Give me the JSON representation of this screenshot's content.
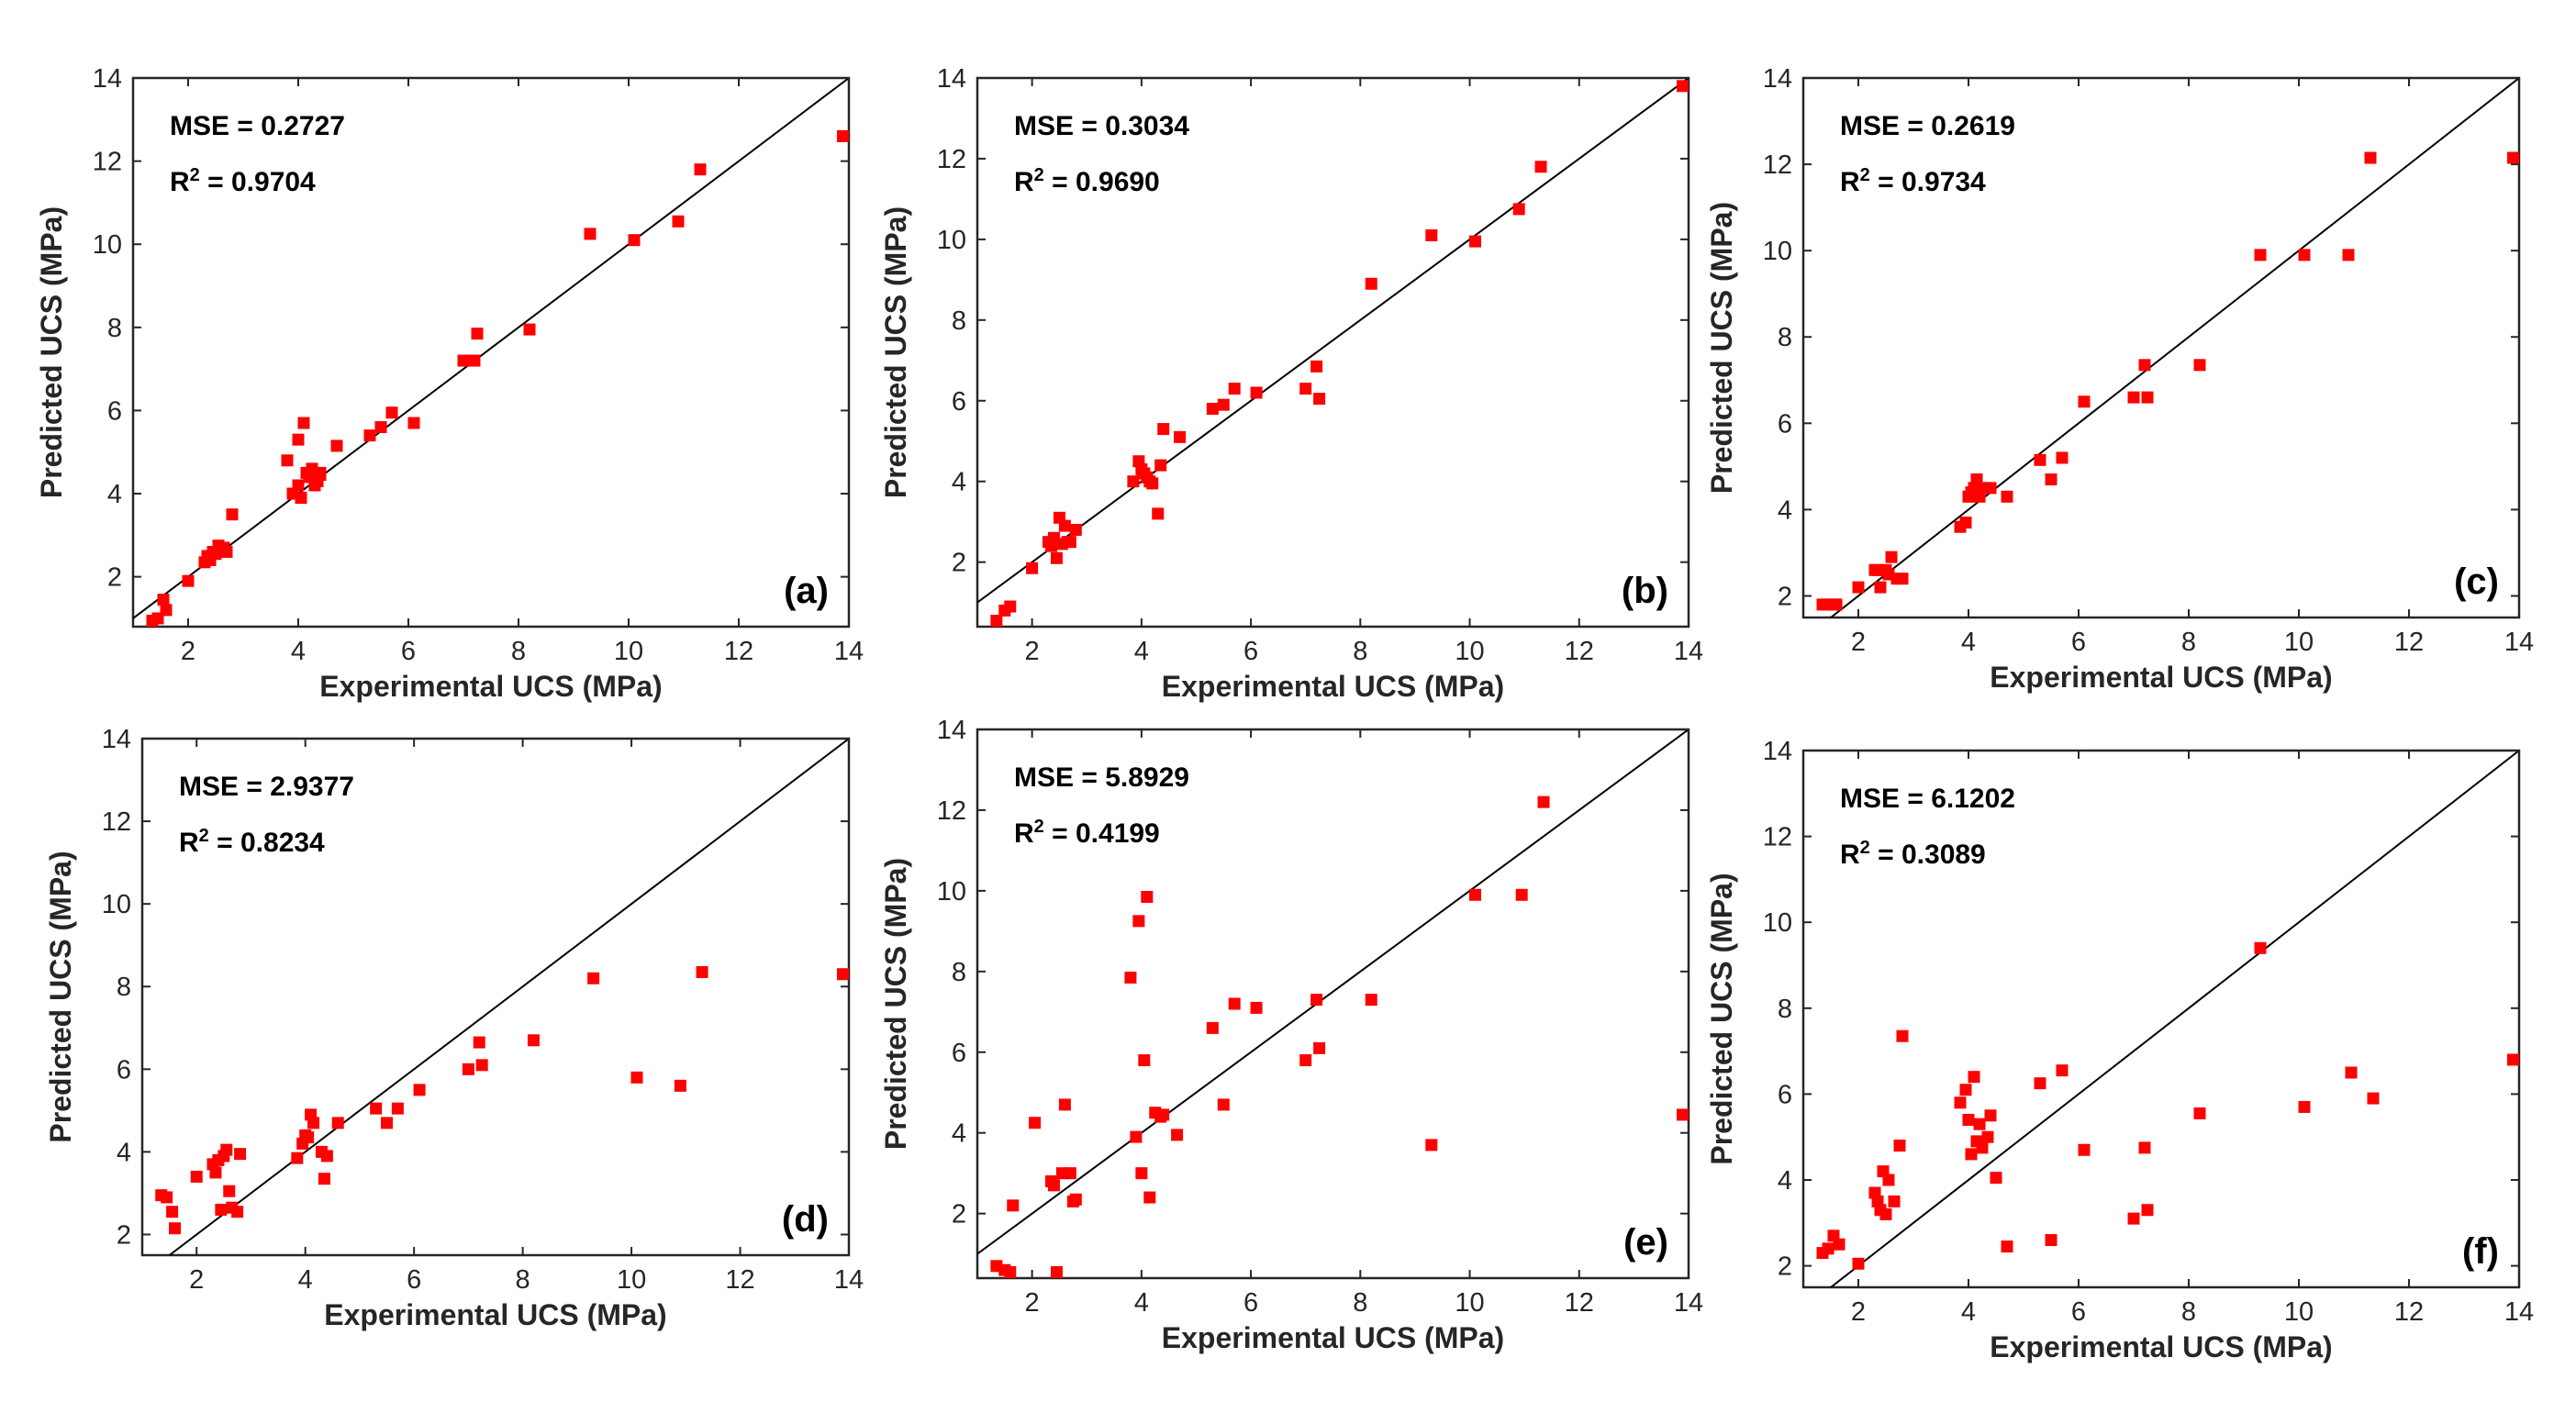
{
  "figure": {
    "marker_color": "#ff0000",
    "line_color": "#000000"
  },
  "chart_data": [
    {
      "type": "scatter",
      "panel": "(a)",
      "xlabel": "Experimental UCS (MPa)",
      "ylabel": "Predicted UCS (MPa)",
      "mse": "MSE = 0.2727",
      "r2": "0.9704",
      "xlim": [
        1,
        14
      ],
      "ylim": [
        0.8,
        14
      ],
      "xticks": [
        "2",
        "4",
        "6",
        "8",
        "10",
        "12",
        "14"
      ],
      "yticks": [
        "2",
        "4",
        "6",
        "8",
        "10",
        "12",
        "14"
      ],
      "reference_line": "y = x",
      "x": [
        1.35,
        1.45,
        1.55,
        1.6,
        2.0,
        2.3,
        2.35,
        2.4,
        2.45,
        2.5,
        2.55,
        2.6,
        2.65,
        2.7,
        2.8,
        3.8,
        3.9,
        4.0,
        4.0,
        4.05,
        4.1,
        4.15,
        4.2,
        4.25,
        4.3,
        4.35,
        4.4,
        4.4,
        4.7,
        5.3,
        5.5,
        5.7,
        6.1,
        7.0,
        7.2,
        7.25,
        8.2,
        9.3,
        10.1,
        10.9,
        11.3,
        14.1
      ],
      "y": [
        0.85,
        1.0,
        1.45,
        1.2,
        1.9,
        2.35,
        2.5,
        2.4,
        2.6,
        2.55,
        2.75,
        2.65,
        2.7,
        2.6,
        3.5,
        4.8,
        4.0,
        4.2,
        5.3,
        3.9,
        5.7,
        4.5,
        4.4,
        4.6,
        4.2,
        4.3,
        4.5,
        4.45,
        5.15,
        5.4,
        5.6,
        5.95,
        5.7,
        7.2,
        7.2,
        7.85,
        7.95,
        10.25,
        10.1,
        10.55,
        11.8,
        12.6
      ]
    },
    {
      "type": "scatter",
      "panel": "(b)",
      "xlabel": "Experimental UCS (MPa)",
      "ylabel": "Predicted UCS (MPa)",
      "mse": "MSE = 0.3034",
      "r2": "0.9690",
      "xlim": [
        1,
        14
      ],
      "ylim": [
        0.4,
        14
      ],
      "xticks": [
        "2",
        "4",
        "6",
        "8",
        "10",
        "12",
        "14"
      ],
      "yticks": [
        "2",
        "4",
        "6",
        "8",
        "10",
        "12",
        "14"
      ],
      "reference_line": "y = x",
      "x": [
        1.35,
        1.5,
        1.6,
        2.0,
        2.3,
        2.35,
        2.4,
        2.45,
        2.5,
        2.55,
        2.6,
        2.65,
        2.7,
        2.8,
        3.85,
        3.95,
        4.0,
        4.05,
        4.1,
        4.15,
        4.2,
        4.3,
        4.35,
        4.4,
        4.7,
        5.3,
        5.5,
        5.7,
        6.1,
        7.0,
        7.2,
        7.25,
        8.2,
        9.3,
        10.1,
        10.9,
        11.3,
        14.1
      ],
      "y": [
        0.5,
        0.8,
        0.9,
        1.85,
        2.5,
        2.4,
        2.6,
        2.1,
        3.1,
        2.45,
        2.9,
        2.5,
        2.5,
        2.8,
        4.0,
        4.5,
        4.3,
        4.2,
        4.1,
        4.0,
        3.95,
        3.2,
        4.4,
        5.3,
        5.1,
        5.8,
        5.9,
        6.3,
        6.2,
        6.3,
        6.85,
        6.05,
        8.9,
        10.1,
        9.95,
        10.75,
        11.8,
        13.8
      ]
    },
    {
      "type": "scatter",
      "panel": "(c)",
      "xlabel": "Experimental UCS (MPa)",
      "ylabel": "Predicted UCS (MPa)",
      "mse": "MSE = 0.2619",
      "r2": "0.9734",
      "xlim": [
        1,
        14
      ],
      "ylim": [
        1.5,
        14
      ],
      "xticks": [
        "2",
        "4",
        "6",
        "8",
        "10",
        "12",
        "14"
      ],
      "yticks": [
        "2",
        "4",
        "6",
        "8",
        "10",
        "12",
        "14"
      ],
      "reference_line": "y = x",
      "x": [
        1.35,
        1.45,
        1.55,
        1.6,
        2.0,
        2.3,
        2.35,
        2.4,
        2.5,
        2.55,
        2.6,
        2.7,
        2.8,
        3.85,
        3.95,
        4.0,
        4.05,
        4.1,
        4.15,
        4.2,
        4.3,
        4.4,
        4.7,
        5.3,
        5.5,
        5.7,
        6.1,
        7.0,
        7.2,
        7.25,
        8.2,
        9.3,
        10.1,
        10.9,
        11.3,
        14.1
      ],
      "y": [
        1.8,
        1.8,
        1.8,
        1.8,
        2.2,
        2.6,
        2.6,
        2.2,
        2.6,
        2.5,
        2.9,
        2.4,
        2.4,
        3.6,
        3.7,
        4.3,
        4.4,
        4.5,
        4.7,
        4.3,
        4.5,
        4.5,
        4.3,
        5.15,
        4.7,
        5.2,
        6.5,
        6.6,
        7.35,
        6.6,
        7.35,
        9.9,
        9.9,
        9.9,
        12.15,
        12.15
      ]
    },
    {
      "type": "scatter",
      "panel": "(d)",
      "xlabel": "Experimental UCS (MPa)",
      "ylabel": "Predicted UCS (MPa)",
      "mse": "MSE = 2.9377",
      "r2": "0.8234",
      "xlim": [
        1,
        14
      ],
      "ylim": [
        1.5,
        14
      ],
      "xticks": [
        "2",
        "4",
        "6",
        "8",
        "10",
        "12",
        "14"
      ],
      "yticks": [
        "2",
        "4",
        "6",
        "8",
        "10",
        "12",
        "14"
      ],
      "reference_line": "y = x",
      "x": [
        1.35,
        1.45,
        1.55,
        1.6,
        2.0,
        2.3,
        2.35,
        2.4,
        2.45,
        2.5,
        2.55,
        2.6,
        2.65,
        2.75,
        2.8,
        3.85,
        3.95,
        4.0,
        4.05,
        4.1,
        4.15,
        4.3,
        4.35,
        4.4,
        4.6,
        5.3,
        5.5,
        5.7,
        6.1,
        7.0,
        7.2,
        7.25,
        8.2,
        9.3,
        10.1,
        10.9,
        11.3,
        14.1
      ],
      "y": [
        2.95,
        2.9,
        2.55,
        2.15,
        3.4,
        3.7,
        3.5,
        3.8,
        2.6,
        3.9,
        4.05,
        3.05,
        2.65,
        2.55,
        3.95,
        3.85,
        4.2,
        4.4,
        4.35,
        4.9,
        4.7,
        4.0,
        3.35,
        3.9,
        4.7,
        5.05,
        4.7,
        5.05,
        5.5,
        6.0,
        6.65,
        6.1,
        6.7,
        8.2,
        5.8,
        5.6,
        8.35,
        8.3
      ]
    },
    {
      "type": "scatter",
      "panel": "(e)",
      "xlabel": "Experimental UCS (MPa)",
      "ylabel": "Predicted UCS (MPa)",
      "mse": "MSE = 5.8929",
      "r2": "0.4199",
      "xlim": [
        1,
        14
      ],
      "ylim": [
        0.4,
        14
      ],
      "xticks": [
        "2",
        "4",
        "6",
        "8",
        "10",
        "12",
        "14"
      ],
      "yticks": [
        "2",
        "4",
        "6",
        "8",
        "10",
        "12",
        "14"
      ],
      "reference_line": "y = x",
      "x": [
        1.35,
        1.5,
        1.6,
        1.65,
        2.05,
        2.35,
        2.4,
        2.45,
        2.55,
        2.6,
        2.7,
        2.75,
        2.8,
        3.8,
        3.9,
        3.95,
        4.0,
        4.05,
        4.1,
        4.15,
        4.25,
        4.35,
        4.4,
        4.65,
        5.3,
        5.5,
        5.7,
        6.1,
        7.0,
        7.2,
        7.25,
        8.2,
        9.3,
        10.1,
        10.95,
        11.35,
        14.1
      ],
      "y": [
        0.7,
        0.6,
        0.5,
        2.2,
        4.25,
        2.8,
        2.7,
        0.5,
        3.0,
        4.7,
        3.0,
        2.3,
        2.35,
        7.85,
        3.9,
        9.25,
        3.0,
        5.8,
        9.85,
        2.4,
        4.5,
        4.4,
        4.45,
        3.95,
        6.6,
        4.7,
        7.2,
        7.1,
        5.8,
        7.3,
        6.1,
        7.3,
        3.7,
        9.9,
        9.9,
        12.2,
        4.45
      ]
    },
    {
      "type": "scatter",
      "panel": "(f)",
      "xlabel": "Experimental UCS (MPa)",
      "ylabel": "Predicted UCS (MPa)",
      "mse": "MSE = 6.1202",
      "r2": "0.3089",
      "xlim": [
        1,
        14
      ],
      "ylim": [
        1.5,
        14
      ],
      "xticks": [
        "2",
        "4",
        "6",
        "8",
        "10",
        "12",
        "14"
      ],
      "yticks": [
        "2",
        "4",
        "6",
        "8",
        "10",
        "12",
        "14"
      ],
      "reference_line": "y = x",
      "x": [
        1.35,
        1.45,
        1.55,
        1.65,
        2.0,
        2.3,
        2.35,
        2.4,
        2.45,
        2.5,
        2.55,
        2.65,
        2.75,
        2.8,
        3.85,
        3.95,
        4.0,
        4.05,
        4.1,
        4.15,
        4.2,
        4.25,
        4.35,
        4.4,
        4.5,
        4.7,
        5.3,
        5.5,
        5.7,
        6.1,
        7.0,
        7.2,
        7.25,
        8.2,
        9.3,
        10.1,
        10.95,
        11.35,
        14.1
      ],
      "y": [
        2.3,
        2.4,
        2.7,
        2.5,
        2.05,
        3.7,
        3.5,
        3.3,
        4.2,
        3.2,
        4.0,
        3.5,
        4.8,
        7.35,
        5.8,
        6.1,
        5.4,
        4.6,
        6.4,
        4.9,
        5.3,
        4.75,
        5.0,
        5.5,
        4.05,
        2.45,
        6.25,
        2.6,
        6.55,
        4.7,
        3.1,
        4.75,
        3.3,
        5.55,
        9.4,
        5.7,
        6.5,
        5.9,
        6.8
      ]
    }
  ]
}
